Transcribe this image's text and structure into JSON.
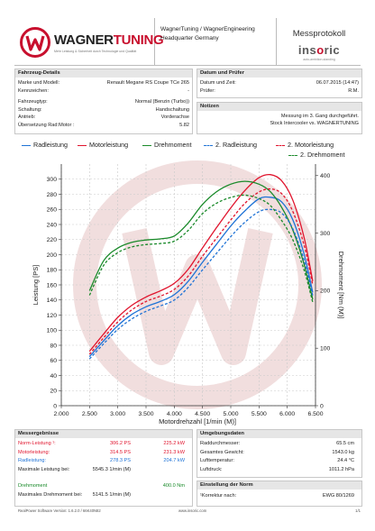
{
  "header": {
    "brand_main": "WAGNER",
    "brand_accent": "TUNING",
    "brand_sub": "Mehr Leistung & Sicherheit durch Technologie und Qualität",
    "company_line1": "WagnerTuning / WagnerEngineering",
    "company_line2": "Headquarter Germany",
    "protocol_title": "Messprotokoll",
    "partner_logo_a": "ins",
    "partner_logo_b": "o",
    "partner_logo_c": "ric",
    "partner_sub": "auto-ambition-standing"
  },
  "vehicle": {
    "title": "Fahrzeug-Details",
    "rows": [
      {
        "k": "Marke und Modell:",
        "v": "Renault Megane RS Coupe TCe 265"
      },
      {
        "k": "Kennzeichen:",
        "v": "-"
      },
      {
        "k": "Fahrzeugtyp:",
        "v": "Normal (Benzin (Turbo))"
      },
      {
        "k": "Schaltung:",
        "v": "Handschaltung"
      },
      {
        "k": "Antrieb:",
        "v": "Vorderachse"
      },
      {
        "k": "Übersetzung Rad:Motor :",
        "v": "5.82"
      }
    ]
  },
  "date_tester": {
    "title": "Datum und Prüfer",
    "rows": [
      {
        "k": "Datum und Zeit:",
        "v": "06.07.2015 (14:47)"
      },
      {
        "k": "Prüfer:",
        "v": "R.M."
      }
    ]
  },
  "notes": {
    "title": "Notizen",
    "line1": "Messung im 3. Gang durchgeführt.",
    "line2": "Stock Intercooler vs. WAGNERTUNING"
  },
  "chart_data": {
    "type": "line",
    "xlabel": "Motordrehzahl [1/min (M)]",
    "ylabel_left": "Leistung [PS]",
    "ylabel_right": "Drehmoment [Nm (M)]",
    "xlim": [
      2000,
      6500
    ],
    "ylim_left": [
      0,
      320
    ],
    "ylim_right": [
      0,
      420
    ],
    "x_ticks": [
      "2.000",
      "2.500",
      "3.000",
      "3.500",
      "4.000",
      "4.500",
      "5.000",
      "5.500",
      "6.000",
      "6.500"
    ],
    "y_left_ticks": [
      "0",
      "20",
      "40",
      "60",
      "80",
      "100",
      "120",
      "140",
      "160",
      "180",
      "200",
      "220",
      "240",
      "260",
      "280",
      "300"
    ],
    "y_right_ticks": [
      "0",
      "100",
      "200",
      "300",
      "400"
    ],
    "grid": true,
    "legend_position": "top",
    "series": [
      {
        "name": "Radleistung",
        "axis": "left",
        "color": "#1f73d6",
        "dash": "solid",
        "x": [
          2500,
          2750,
          3000,
          3250,
          3500,
          3750,
          4000,
          4250,
          4500,
          4750,
          5000,
          5250,
          5500,
          5700,
          5900,
          6100,
          6300,
          6450
        ],
        "y": [
          65,
          86,
          106,
          121,
          131,
          138,
          147,
          165,
          190,
          214,
          238,
          258,
          274,
          276,
          270,
          246,
          200,
          150
        ]
      },
      {
        "name": "Motorleistung",
        "axis": "left",
        "color": "#e0142d",
        "dash": "solid",
        "x": [
          2500,
          2750,
          3000,
          3250,
          3500,
          3750,
          4000,
          4250,
          4500,
          4750,
          5000,
          5250,
          5500,
          5700,
          5900,
          6100,
          6300,
          6450
        ],
        "y": [
          72,
          95,
          117,
          133,
          144,
          152,
          162,
          181,
          209,
          236,
          262,
          285,
          302,
          306,
          298,
          272,
          222,
          165
        ]
      },
      {
        "name": "Drehmoment",
        "axis": "right",
        "color": "#1a8a2a",
        "dash": "solid",
        "x": [
          2500,
          2750,
          3000,
          3250,
          3500,
          3750,
          4000,
          4250,
          4500,
          4750,
          5000,
          5250,
          5500,
          5700,
          5900,
          6100,
          6300,
          6450
        ],
        "y": [
          200,
          252,
          274,
          284,
          288,
          290,
          295,
          318,
          350,
          372,
          385,
          390,
          385,
          372,
          345,
          305,
          245,
          185
        ]
      },
      {
        "name": "2. Radleistung",
        "axis": "left",
        "color": "#1f73d6",
        "dash": "dashed",
        "x": [
          2500,
          2750,
          3000,
          3250,
          3500,
          3750,
          4000,
          4250,
          4500,
          4750,
          5000,
          5250,
          5500,
          5700,
          5900,
          6100,
          6300,
          6450
        ],
        "y": [
          62,
          82,
          101,
          115,
          125,
          132,
          140,
          157,
          180,
          202,
          224,
          243,
          257,
          260,
          255,
          234,
          192,
          146
        ]
      },
      {
        "name": "2. Motorleistung",
        "axis": "left",
        "color": "#e0142d",
        "dash": "dashed",
        "x": [
          2500,
          2750,
          3000,
          3250,
          3500,
          3750,
          4000,
          4250,
          4500,
          4750,
          5000,
          5250,
          5500,
          5700,
          5900,
          6100,
          6300,
          6450
        ],
        "y": [
          68,
          90,
          111,
          127,
          138,
          145,
          154,
          172,
          198,
          222,
          246,
          268,
          283,
          287,
          281,
          257,
          212,
          160
        ]
      },
      {
        "name": "2. Drehmoment",
        "axis": "right",
        "color": "#1a8a2a",
        "dash": "dashed",
        "x": [
          2500,
          2750,
          3000,
          3250,
          3500,
          3750,
          4000,
          4250,
          4500,
          4750,
          5000,
          5250,
          5500,
          5700,
          5900,
          6100,
          6300,
          6450
        ],
        "y": [
          192,
          244,
          266,
          276,
          280,
          282,
          286,
          305,
          334,
          352,
          362,
          366,
          360,
          348,
          322,
          288,
          235,
          180
        ]
      }
    ]
  },
  "results": {
    "title": "Messergebnisse",
    "rows": [
      {
        "k": "Norm-Leistung ¹:",
        "v1": "306.2 PS",
        "v2": "225.2 kW",
        "color": "#e0142d"
      },
      {
        "k": "Motorleistung:",
        "v1": "314.5 PS",
        "v2": "231.3 kW",
        "color": "#e0142d"
      },
      {
        "k": "Radleistung:",
        "v1": "278.3 PS",
        "v2": "204.7 kW",
        "color": "#1f73d6"
      },
      {
        "k": "Maximale Leistung bei:",
        "v1": "5545.3 1/min (M)",
        "v2": "",
        "color": "#222222"
      }
    ],
    "torque_rows": [
      {
        "k": "Drehmoment",
        "v1": "",
        "v2": "400.0 Nm",
        "color": "#1a8a2a"
      },
      {
        "k": "Maximales Drehmoment bei:",
        "v1": "5141.5 1/min (M)",
        "v2": "",
        "color": "#222222"
      }
    ]
  },
  "environment": {
    "title": "Umgebungsdaten",
    "rows": [
      {
        "k": "Raddurchmesser:",
        "v": "65.5 cm"
      },
      {
        "k": "Gesamtes Gewicht:",
        "v": "1543.0 kg"
      },
      {
        "k": "Lufttemperatur:",
        "v": "24.4 °C"
      },
      {
        "k": "Luftdruck:",
        "v": "1011.2 hPa"
      }
    ]
  },
  "standard": {
    "title": "Einstellung der Norm",
    "k": "¹Korrektur nach:",
    "v": "EWG 80/1269"
  },
  "footer": {
    "left": "RealPower Software Version: 1.6.2.0 / 66K40N82",
    "center": "www.insoric.com",
    "right": "1/1"
  },
  "colors": {
    "brand_red": "#c8102e",
    "power_red": "#e0142d",
    "wheel_blue": "#1f73d6",
    "torque_green": "#1a8a2a",
    "panel_header": "#e6e6e6"
  }
}
